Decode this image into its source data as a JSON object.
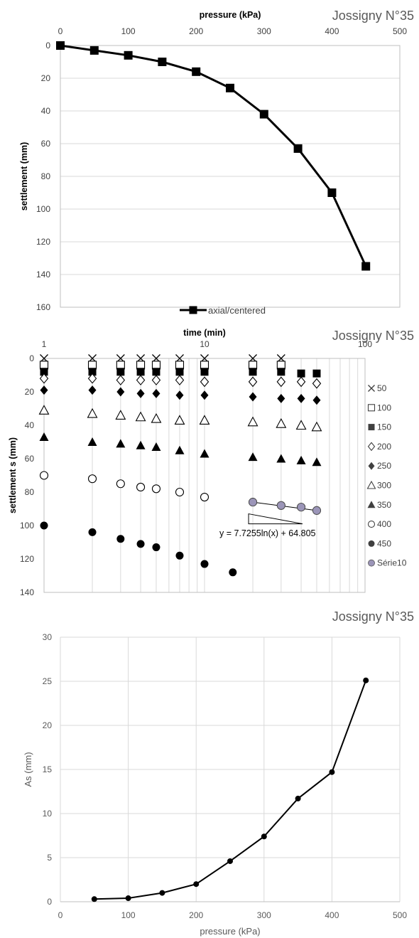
{
  "chart_data": [
    {
      "type": "line",
      "title": "Jossigny N°35",
      "xlabel": "pressure (kPa)",
      "ylabel": "settlement (mm)",
      "xlim": [
        0,
        500
      ],
      "ylim": [
        0,
        160
      ],
      "y_inverted": true,
      "x_axis_position": "top",
      "x_ticks": [
        0,
        100,
        200,
        300,
        400,
        500
      ],
      "y_ticks": [
        0,
        20,
        40,
        60,
        80,
        100,
        120,
        140,
        160
      ],
      "grid": "horizontal",
      "legend_position": "bottom",
      "series": [
        {
          "name": "axial/centered",
          "marker": "square",
          "color": "#000000",
          "x": [
            0,
            50,
            100,
            150,
            200,
            250,
            300,
            350,
            400,
            450
          ],
          "y": [
            0,
            3,
            6,
            10,
            16,
            26,
            42,
            63,
            90,
            135
          ]
        }
      ]
    },
    {
      "type": "scatter",
      "title": "Jossigny N°35",
      "xlabel": "time (min)",
      "ylabel": "settlement s (mm)",
      "x_scale": "log",
      "xlim": [
        1,
        100
      ],
      "ylim": [
        0,
        140
      ],
      "y_inverted": true,
      "x_axis_position": "top",
      "x_ticks": [
        1,
        10,
        100
      ],
      "y_ticks": [
        0,
        20,
        40,
        60,
        80,
        100,
        120,
        140
      ],
      "grid": "vertical",
      "legend_position": "right",
      "annotation": "y = 7.7255ln(x) + 64.805",
      "series": [
        {
          "name": "50",
          "marker": "x",
          "x": [
            1,
            2,
            3,
            4,
            5,
            7,
            10,
            20,
            30
          ],
          "y": [
            0,
            0,
            0,
            0,
            0,
            0,
            0,
            0,
            0
          ]
        },
        {
          "name": "100",
          "marker": "square-open",
          "x": [
            1,
            2,
            3,
            4,
            5,
            7,
            10,
            20,
            30
          ],
          "y": [
            4,
            4,
            4,
            4,
            4,
            4,
            4,
            4,
            4
          ]
        },
        {
          "name": "150",
          "marker": "square",
          "x": [
            1,
            2,
            3,
            4,
            5,
            7,
            10,
            20,
            30,
            40,
            50
          ],
          "y": [
            8,
            8,
            8,
            8,
            8,
            8,
            8,
            8,
            8,
            9,
            9
          ]
        },
        {
          "name": "200",
          "marker": "diamond-open",
          "x": [
            1,
            2,
            3,
            4,
            5,
            7,
            10,
            20,
            30,
            40,
            50
          ],
          "y": [
            12,
            12,
            13,
            13,
            13,
            13,
            14,
            14,
            14,
            14,
            15
          ]
        },
        {
          "name": "250",
          "marker": "diamond",
          "x": [
            1,
            2,
            3,
            4,
            5,
            7,
            10,
            20,
            30,
            40,
            50
          ],
          "y": [
            19,
            19,
            20,
            21,
            21,
            22,
            22,
            23,
            24,
            24,
            25
          ]
        },
        {
          "name": "300",
          "marker": "triangle-open",
          "x": [
            1,
            2,
            3,
            4,
            5,
            7,
            10,
            20,
            30,
            40,
            50
          ],
          "y": [
            31,
            33,
            34,
            35,
            36,
            37,
            37,
            38,
            39,
            40,
            41
          ]
        },
        {
          "name": "350",
          "marker": "triangle",
          "x": [
            1,
            2,
            3,
            4,
            5,
            7,
            10,
            20,
            30,
            40,
            50
          ],
          "y": [
            47,
            50,
            51,
            52,
            53,
            55,
            57,
            59,
            60,
            61,
            62
          ]
        },
        {
          "name": "400",
          "marker": "circle-open",
          "x": [
            1,
            2,
            3,
            4,
            5,
            7,
            10,
            20,
            30,
            40,
            50
          ],
          "y": [
            70,
            72,
            75,
            77,
            78,
            80,
            83,
            86,
            88,
            89,
            91
          ]
        },
        {
          "name": "450",
          "marker": "circle",
          "x": [
            1,
            2,
            3,
            4,
            5,
            7,
            10,
            15
          ],
          "y": [
            100,
            104,
            108,
            111,
            113,
            118,
            123,
            128
          ]
        },
        {
          "name": "Série10",
          "marker": "circle-gray",
          "color": "#9b95b8",
          "x": [
            20,
            30,
            40,
            50
          ],
          "y": [
            86,
            88,
            89,
            91
          ]
        }
      ]
    },
    {
      "type": "line",
      "title": "Jossigny N°35",
      "xlabel": "pressure (kPa)",
      "ylabel": "As (mm)",
      "xlim": [
        0,
        500
      ],
      "ylim": [
        0,
        30
      ],
      "x_ticks": [
        0,
        100,
        200,
        300,
        400,
        500
      ],
      "y_ticks": [
        0,
        5,
        10,
        15,
        20,
        25,
        30
      ],
      "grid": "both",
      "series": [
        {
          "marker": "circle",
          "color": "#000000",
          "x": [
            50,
            100,
            150,
            200,
            250,
            300,
            350,
            400,
            450
          ],
          "y": [
            0.3,
            0.4,
            1.0,
            2.0,
            4.6,
            7.4,
            11.7,
            14.7,
            25.1
          ]
        }
      ]
    }
  ]
}
